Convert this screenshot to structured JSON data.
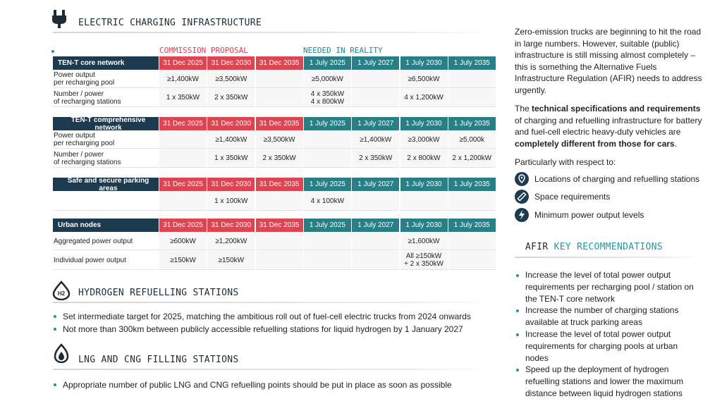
{
  "charging": {
    "title": "ELECTRIC CHARGING INFRASTRUCTURE",
    "group_labels": [
      "COMMISSION PROPOSAL",
      "NEEDED IN REALITY"
    ],
    "sections": [
      {
        "header": "TEN-T core network",
        "dates": [
          "31 Dec 2025",
          "31 Dec 2030",
          "31 Dec 2035",
          "1 July 2025",
          "1 July 2027",
          "1 July 2030",
          "1 July 2035"
        ],
        "rows": [
          {
            "label": "Power output\nper recharging pool",
            "cells": [
              "≥1,400kW",
              "≥3,500kW",
              null,
              "≥5,000kW",
              null,
              "≥6,500kW",
              null
            ]
          },
          {
            "label": "Number / power\nof recharging stations",
            "cells": [
              "1 x 350kW",
              "2 x 350kW",
              null,
              "4 x 350kW\n4 x 800kW",
              null,
              "4 x 1,200kW",
              null
            ]
          }
        ]
      },
      {
        "header": "TEN-T comprehensive network",
        "dates": [
          "31 Dec 2025",
          "31 Dec 2030",
          "31 Dec 2035",
          "1 July 2025",
          "1 July 2027",
          "1 July 2030",
          "1 July 2035"
        ],
        "rows": [
          {
            "label": "Power output\nper recharging pool",
            "cells": [
              null,
              "≥1,400kW",
              "≥3,500kW",
              null,
              "≥1,400kW",
              "≥3,000kW",
              "≥5,000k"
            ]
          },
          {
            "label": "Number / power\nof recharging stations",
            "cells": [
              null,
              "1 x 350kW",
              "2 x 350kW",
              null,
              "2 x 350kW",
              "2 x 800kW",
              "2 x 1,200kW"
            ]
          }
        ]
      },
      {
        "header": "Safe and secure parking areas",
        "dates": [
          "31 Dec 2025",
          "31 Dec 2030",
          "31 Dec 2035",
          "1 July 2025",
          "1 July 2027",
          "1 July 2030",
          "1 July 2035"
        ],
        "rows": [
          {
            "label": null,
            "cells": [
              null,
              "1 x 100kW",
              null,
              "4 x 100kW",
              null,
              null,
              null
            ]
          }
        ]
      },
      {
        "header": "Urban nodes",
        "dates": [
          "31 Dec 2025",
          "31 Dec 2030",
          "31 Dec 2035",
          "1 July 2025",
          "1 July 2027",
          "1 July 2030",
          "1 July 2035"
        ],
        "rows": [
          {
            "label": "Aggregated power output",
            "cells": [
              "≥600kW",
              "≥1,200kW",
              null,
              null,
              null,
              "≥1,600kW",
              null
            ]
          },
          {
            "label": "Individual power output",
            "cells": [
              "≥150kW",
              "≥150kW",
              null,
              null,
              null,
              "All ≥150kW\n+ 2 x 350kW",
              null
            ]
          }
        ]
      }
    ]
  },
  "hydrogen": {
    "title": "HYDROGEN REFUELLING STATIONS",
    "bullets": [
      "Set intermediate target for 2025, matching the ambitious roll out of fuel-cell electric trucks from 2024 onwards",
      "Not more than 300km between publicly accessible refuelling stations for liquid hydrogen by 1 January 2027"
    ]
  },
  "lng": {
    "title": "LNG AND CNG FILLING STATIONS",
    "bullets": [
      "Appropriate number of public LNG and CNG refuelling points should be put in place as soon as possible"
    ]
  },
  "sidebar": {
    "intro": "Zero-emission trucks are beginning to hit the road in large numbers. However, suitable (public) infrastructure is still missing almost completely – this is something the Alternative Fuels Infrastructure Regulation (AFIR) needs to address urgently.",
    "specs": [
      {
        "text": "The "
      },
      {
        "text": "technical specifications and requirements",
        "bold": true
      },
      {
        "text": " of charging and refuelling infrastructure for battery and fuel-cell electric heavy-duty vehicles are "
      },
      {
        "text": "completely different from those for cars",
        "bold": true
      },
      {
        "text": "."
      }
    ],
    "respect_intro": "Particularly with respect to:",
    "respect_items": [
      "Locations of charging and refuelling stations",
      "Space requirements",
      "Minimum power output levels"
    ],
    "recommendations_title": [
      "AFIR",
      "KEY RECOMMENDATIONS"
    ],
    "recommendations": [
      "Increase the level of total power output requirements per recharging pool / station on the TEN-T core network",
      "Increase the number of charging stations available at truck parking areas",
      "Increase the level of total power output requirements for charging pools at urban nodes",
      "Speed up the deployment of hydrogen refuelling stations and lower the maximum distance between liquid hydrogen stations"
    ]
  }
}
